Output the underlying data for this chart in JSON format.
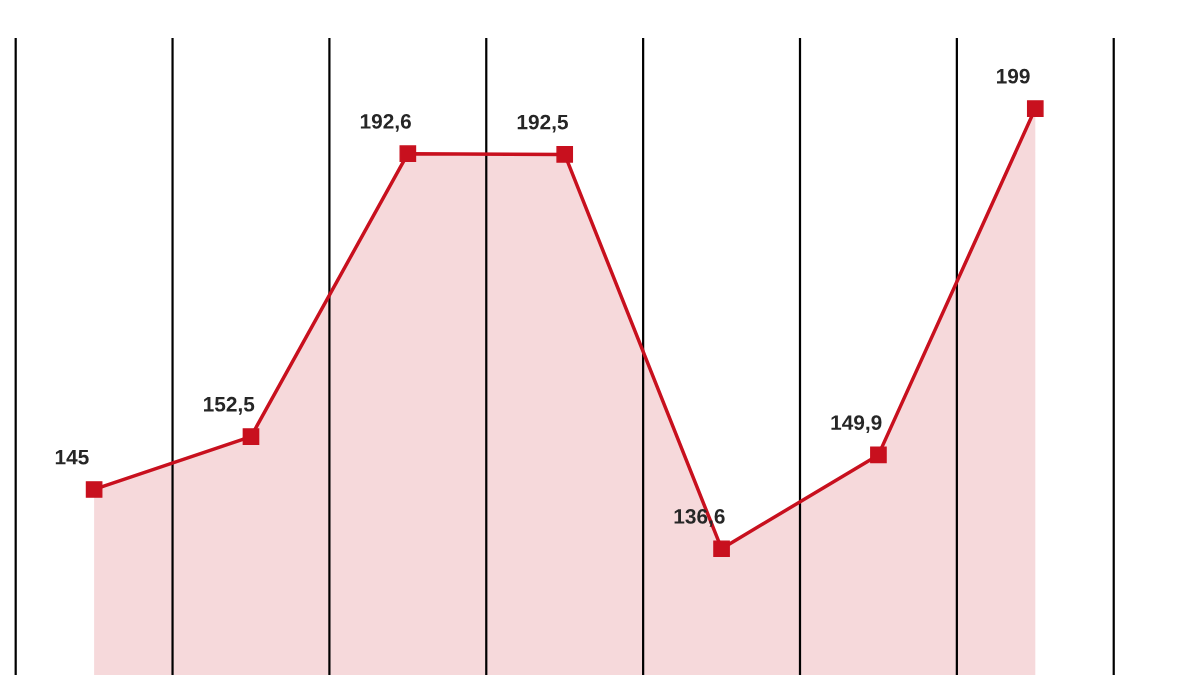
{
  "chart_data": {
    "type": "area",
    "categories": [
      null,
      null,
      null,
      null,
      null,
      null,
      null
    ],
    "series": [
      {
        "color": "#c8101e",
        "values": [
          145,
          152.5,
          192.6,
          192.5,
          136.6,
          149.9,
          199
        ],
        "value_labels": [
          "145",
          "152,5",
          "192,6",
          "192,5",
          "136,6",
          "149,9",
          "199"
        ]
      }
    ],
    "ylim": [
      118.7,
      209
    ],
    "marker": "square",
    "line_style": "solid",
    "grid": "x"
  }
}
